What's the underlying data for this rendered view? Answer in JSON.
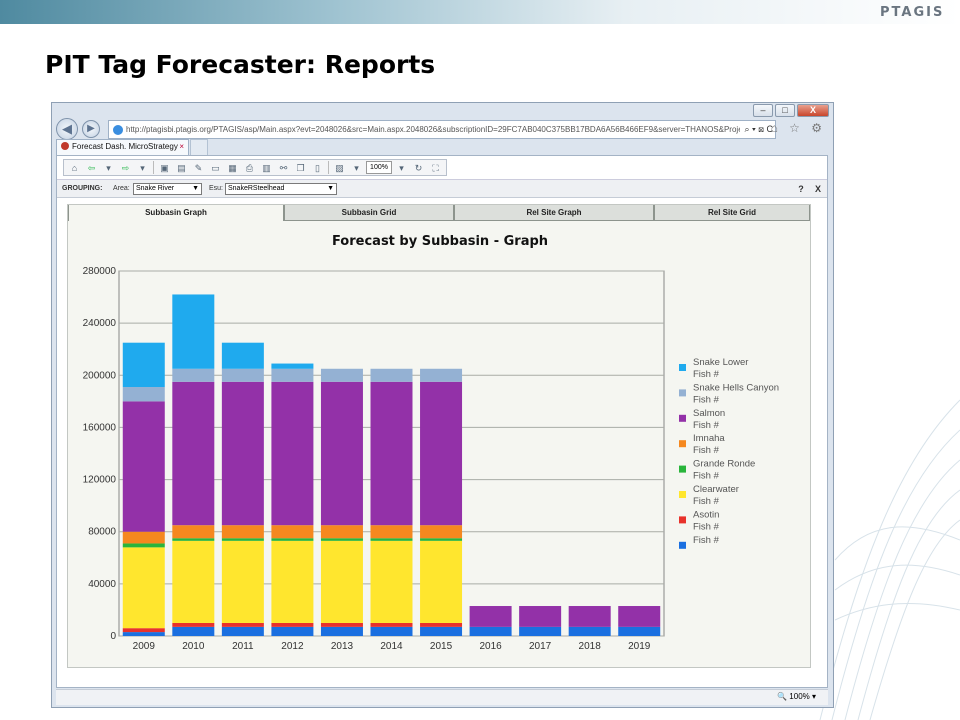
{
  "brand": {
    "logo_text": "PTAGIS"
  },
  "slide": {
    "title": "PIT Tag Forecaster: Reports"
  },
  "browser": {
    "window_controls": {
      "minimize": "–",
      "maximize": "□",
      "close": "X"
    },
    "nav": {
      "back_icon": "back-arrow-icon",
      "forward_icon": "forward-arrow-icon"
    },
    "address_bar": {
      "url": "http://ptagisbi.ptagis.org/PTAGIS/asp/Main.aspx?evt=2048026&src=Main.aspx.2048026&subscriptionID=29FC7AB040C375BB17BDA6A56B466EF9&server=THANOS&Project=P",
      "tools": "⌕ ▾ ⊠ C"
    },
    "right_icons": "⌂ ☆ ⚙",
    "tab": {
      "label": "Forecast Dash. MicroStrategy",
      "close": "×"
    },
    "status": {
      "zoom": "🔍 100%  ▾"
    }
  },
  "toolbar": {
    "zoom_value": "100%"
  },
  "grouping": {
    "label": "GROUPING:",
    "area_label": "Area:",
    "area_value": "Snake River",
    "esu_label": "Esu:",
    "esu_value": "SnakeRSteelhead",
    "help": "?",
    "close": "X"
  },
  "report_tabs": [
    "Subbasin Graph",
    "Subbasin Grid",
    "Rel Site Graph",
    "Rel Site Grid"
  ],
  "active_tab": 0,
  "chart_data": {
    "type": "bar",
    "stacked": true,
    "title": "Forecast by Subbasin - Graph",
    "xlabel": "",
    "ylabel": "",
    "ylim": [
      0,
      280000
    ],
    "yticks": [
      0,
      40000,
      80000,
      120000,
      160000,
      200000,
      240000,
      280000
    ],
    "ytick_labels": [
      "0",
      "40000",
      "80000",
      "120000",
      "160000",
      "200000",
      "240000",
      "280000"
    ],
    "grid": true,
    "legend_position": "right",
    "categories": [
      "2009",
      "2010",
      "2011",
      "2012",
      "2013",
      "2014",
      "2015",
      "2016",
      "2017",
      "2018",
      "2019"
    ],
    "series": [
      {
        "name": "Fish #",
        "color": "#1a6fe0",
        "values": [
          3000,
          7000,
          7000,
          7000,
          7000,
          7000,
          7000,
          7000,
          7000,
          7000,
          7000
        ]
      },
      {
        "name": "Asotin Fish #",
        "color": "#e8322b",
        "values": [
          3000,
          3000,
          3000,
          3000,
          3000,
          3000,
          3000,
          0,
          0,
          0,
          0
        ]
      },
      {
        "name": "Clearwater Fish #",
        "color": "#ffe62e",
        "values": [
          62000,
          63000,
          63000,
          63000,
          63000,
          63000,
          63000,
          0,
          0,
          0,
          0
        ]
      },
      {
        "name": "Grande Ronde Fish #",
        "color": "#29b53b",
        "values": [
          3000,
          2000,
          2000,
          2000,
          2000,
          2000,
          2000,
          0,
          0,
          0,
          0
        ]
      },
      {
        "name": "Imnaha Fish #",
        "color": "#f5881f",
        "values": [
          9000,
          10000,
          10000,
          10000,
          10000,
          10000,
          10000,
          0,
          0,
          0,
          0
        ]
      },
      {
        "name": "Salmon Fish #",
        "color": "#9331a8",
        "values": [
          100000,
          110000,
          110000,
          110000,
          110000,
          110000,
          110000,
          16000,
          16000,
          16000,
          16000
        ]
      },
      {
        "name": "Snake Hells Canyon Fish #",
        "color": "#94b1d3",
        "values": [
          11000,
          10000,
          10000,
          10000,
          10000,
          10000,
          10000,
          0,
          0,
          0,
          0
        ]
      },
      {
        "name": "Snake Lower Fish #",
        "color": "#1faaee",
        "values": [
          34000,
          57000,
          20000,
          4000,
          0,
          0,
          0,
          0,
          0,
          0,
          0
        ]
      }
    ],
    "legend": [
      {
        "line1": "Snake Lower",
        "line2": "Fish #",
        "color": "#1faaee"
      },
      {
        "line1": "Snake Hells Canyon",
        "line2": "Fish #",
        "color": "#94b1d3"
      },
      {
        "line1": "Salmon",
        "line2": "Fish #",
        "color": "#9331a8"
      },
      {
        "line1": "Imnaha",
        "line2": "Fish #",
        "color": "#f5881f"
      },
      {
        "line1": "Grande Ronde",
        "line2": "Fish #",
        "color": "#29b53b"
      },
      {
        "line1": "Clearwater",
        "line2": "Fish #",
        "color": "#ffe62e"
      },
      {
        "line1": "Asotin",
        "line2": "Fish #",
        "color": "#e8322b"
      },
      {
        "line1": "Fish #",
        "line2": "",
        "color": "#1a6fe0"
      }
    ]
  }
}
